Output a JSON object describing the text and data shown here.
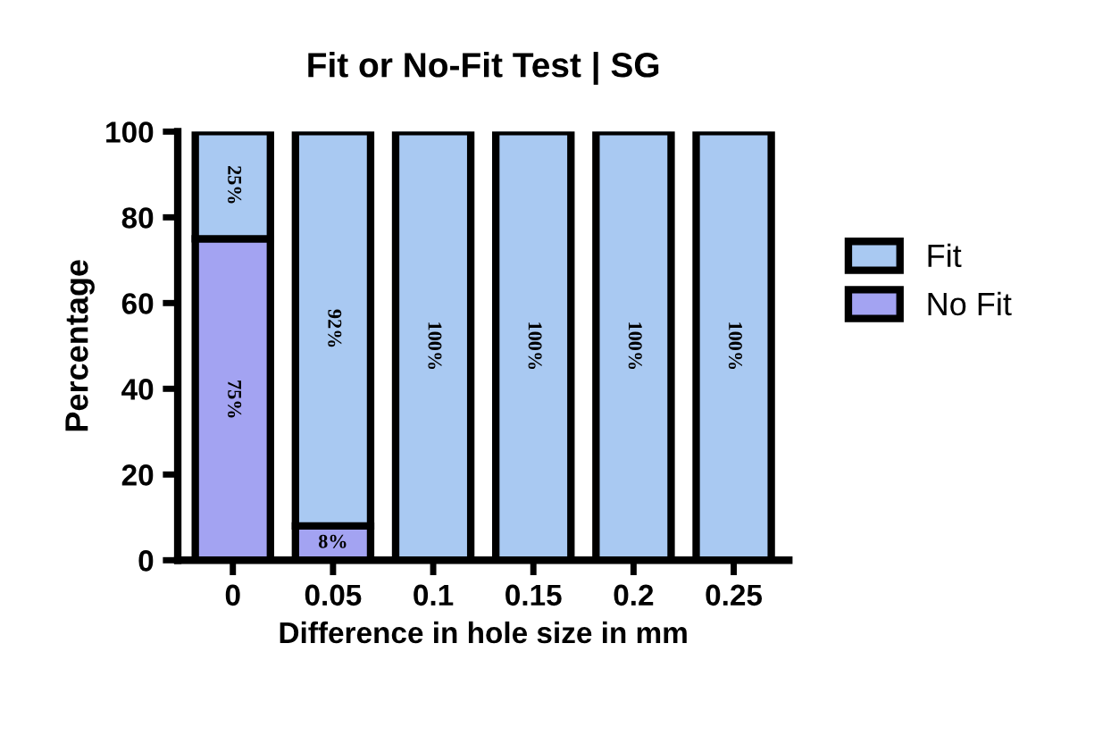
{
  "chart_data": {
    "type": "bar",
    "stacked": true,
    "title": "Fit or No-Fit Test | SG",
    "xlabel": "Difference in hole size in mm",
    "ylabel": "Percentage",
    "categories": [
      "0",
      "0.05",
      "0.1",
      "0.15",
      "0.2",
      "0.25"
    ],
    "series": [
      {
        "name": "No Fit",
        "color": "#a3a3f2",
        "values": [
          75,
          8,
          0,
          0,
          0,
          0
        ],
        "value_labels": [
          "75%",
          "8%",
          null,
          null,
          null,
          null
        ]
      },
      {
        "name": "Fit",
        "color": "#a9c9f2",
        "values": [
          25,
          92,
          100,
          100,
          100,
          100
        ],
        "value_labels": [
          "25%",
          "92%",
          "100%",
          "100%",
          "100%",
          "100%"
        ]
      }
    ],
    "ylim": [
      0,
      100
    ],
    "yticks": [
      0,
      20,
      40,
      60,
      80,
      100
    ],
    "grid": false,
    "legend": "right"
  }
}
